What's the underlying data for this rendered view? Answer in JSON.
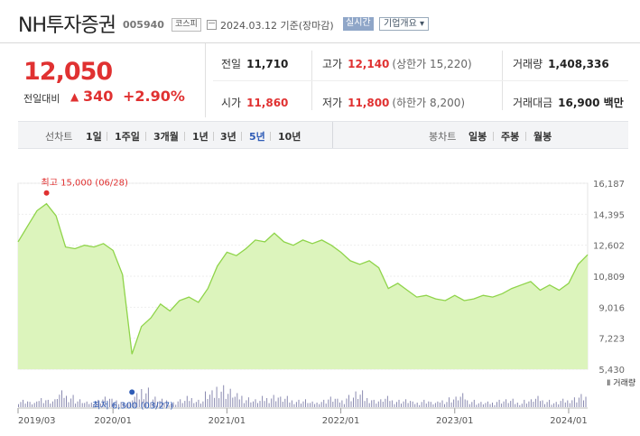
{
  "header": {
    "name": "NH투자증권",
    "code": "005940",
    "market": "코스피",
    "date": "2024.03.12 기준(장마감)",
    "realtime": "실시간",
    "company": "기업개요 ▾"
  },
  "price": {
    "current": "12,050",
    "change_label": "전일대비",
    "change_arrow": "▲",
    "change": "340",
    "change_pct": "+2.90%"
  },
  "info": {
    "prev_label": "전일",
    "prev": "11,710",
    "open_label": "시가",
    "open": "11,860",
    "high_label": "고가",
    "high": "12,140",
    "upper_limit": "(상한가 15,220)",
    "low_label": "저가",
    "low": "11,800",
    "lower_limit": "(하한가 8,200)",
    "volume_label": "거래량",
    "volume": "1,408,336",
    "amount_label": "거래대금",
    "amount": "16,900 백만"
  },
  "period": {
    "label": "선차트",
    "items": [
      "1일",
      "1주일",
      "3개월",
      "1년",
      "3년",
      "5년",
      "10년"
    ],
    "active": "5년",
    "candle_label": "봉차트",
    "candles": [
      "일봉",
      "주봉",
      "월봉"
    ]
  },
  "colors": {
    "up": "#e03131",
    "area": "#d6f2b0",
    "line": "#8fd44a",
    "volume": "#8a8ab0"
  },
  "chart_data": {
    "type": "area",
    "y_ticks": [
      "16,187",
      "14,395",
      "12,602",
      "10,809",
      "9,016",
      "7,223",
      "5,430"
    ],
    "ylim": [
      5430,
      16187
    ],
    "x_ticks": [
      "2019/03",
      "2020/01",
      "2021/01",
      "2022/01",
      "2023/01",
      "2024/01"
    ],
    "max_label": "최고 15,000 (06/28)",
    "min_label": "최저 6,300 (03/27)",
    "volume_label": "Ⅱ 거래량",
    "points": [
      [
        "2019/03",
        12800
      ],
      [
        "2019/04",
        13700
      ],
      [
        "2019/05",
        14600
      ],
      [
        "2019/06",
        15000
      ],
      [
        "2019/07",
        14300
      ],
      [
        "2019/08",
        12500
      ],
      [
        "2019/09",
        12400
      ],
      [
        "2019/10",
        12600
      ],
      [
        "2019/11",
        12500
      ],
      [
        "2019/12",
        12700
      ],
      [
        "2020/01",
        12300
      ],
      [
        "2020/02",
        10900
      ],
      [
        "2020/03",
        6300
      ],
      [
        "2020/04",
        7900
      ],
      [
        "2020/05",
        8400
      ],
      [
        "2020/06",
        9200
      ],
      [
        "2020/07",
        8800
      ],
      [
        "2020/08",
        9400
      ],
      [
        "2020/09",
        9600
      ],
      [
        "2020/10",
        9300
      ],
      [
        "2020/11",
        10100
      ],
      [
        "2020/12",
        11400
      ],
      [
        "2021/01",
        12200
      ],
      [
        "2021/02",
        12000
      ],
      [
        "2021/03",
        12400
      ],
      [
        "2021/04",
        12900
      ],
      [
        "2021/05",
        12800
      ],
      [
        "2021/06",
        13300
      ],
      [
        "2021/07",
        12800
      ],
      [
        "2021/08",
        12600
      ],
      [
        "2021/09",
        12900
      ],
      [
        "2021/10",
        12700
      ],
      [
        "2021/11",
        12900
      ],
      [
        "2021/12",
        12600
      ],
      [
        "2022/01",
        12200
      ],
      [
        "2022/02",
        11700
      ],
      [
        "2022/03",
        11500
      ],
      [
        "2022/04",
        11700
      ],
      [
        "2022/05",
        11300
      ],
      [
        "2022/06",
        10100
      ],
      [
        "2022/07",
        10400
      ],
      [
        "2022/08",
        10000
      ],
      [
        "2022/09",
        9600
      ],
      [
        "2022/10",
        9700
      ],
      [
        "2022/11",
        9500
      ],
      [
        "2022/12",
        9400
      ],
      [
        "2023/01",
        9700
      ],
      [
        "2023/02",
        9400
      ],
      [
        "2023/03",
        9500
      ],
      [
        "2023/04",
        9700
      ],
      [
        "2023/05",
        9600
      ],
      [
        "2023/06",
        9800
      ],
      [
        "2023/07",
        10100
      ],
      [
        "2023/08",
        10300
      ],
      [
        "2023/09",
        10500
      ],
      [
        "2023/10",
        10000
      ],
      [
        "2023/11",
        10300
      ],
      [
        "2023/12",
        10000
      ],
      [
        "2024/01",
        10400
      ],
      [
        "2024/02",
        11500
      ],
      [
        "2024/03",
        12050
      ]
    ],
    "volume": [
      3,
      2,
      4,
      3,
      6,
      5,
      3,
      2,
      3,
      4,
      3,
      2,
      5,
      8,
      4,
      3,
      2,
      3,
      4,
      3,
      6,
      9,
      7,
      5,
      4,
      3,
      4,
      5,
      4,
      3,
      3,
      2,
      3,
      4,
      3,
      5,
      6,
      4,
      3,
      4,
      3,
      3,
      2,
      3,
      2,
      3,
      4,
      5,
      3,
      2,
      2,
      3,
      3,
      2,
      3,
      4,
      3,
      2,
      3,
      4,
      5
    ]
  }
}
